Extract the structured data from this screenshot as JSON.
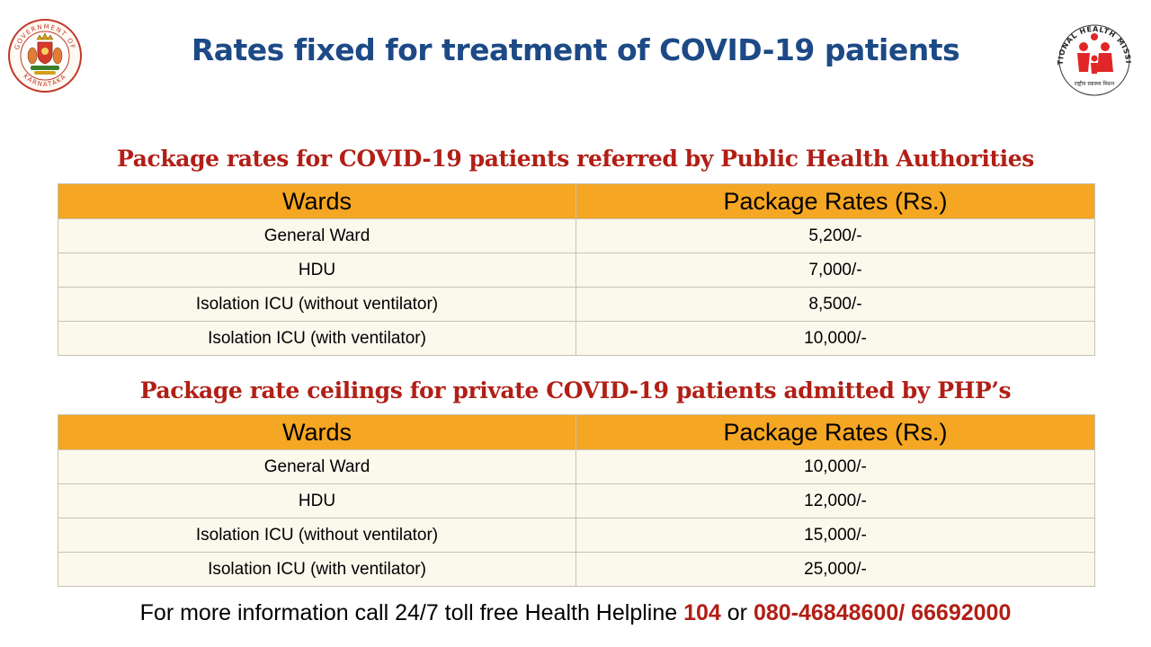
{
  "header": {
    "title": "Rates fixed for treatment of COVID-19 patients",
    "left_logo": {
      "icon": "karnataka-emblem-icon",
      "text_top": "GOVERNMENT OF",
      "text_bottom": "KARNATAKA"
    },
    "right_logo": {
      "icon": "national-health-mission-logo-icon",
      "text_top": "NATIONAL HEALTH MISSION",
      "text_bottom": "राष्ट्रीय स्वास्थ्य मिशन"
    }
  },
  "sections": [
    {
      "title": "Package rates for COVID-19 patients referred by Public Health Authorities",
      "headers": [
        "Wards",
        "Package Rates (Rs.)"
      ],
      "rows": [
        [
          "General Ward",
          "5,200/-"
        ],
        [
          "HDU",
          "7,000/-"
        ],
        [
          "Isolation ICU (without ventilator)",
          "8,500/-"
        ],
        [
          "Isolation ICU (with ventilator)",
          "10,000/-"
        ]
      ]
    },
    {
      "title": "Package rate ceilings for private COVID-19 patients admitted by PHP’s",
      "headers": [
        "Wards",
        "Package Rates (Rs.)"
      ],
      "rows": [
        [
          "General Ward",
          "10,000/-"
        ],
        [
          "HDU",
          "12,000/-"
        ],
        [
          "Isolation ICU (without ventilator)",
          "15,000/-"
        ],
        [
          "Isolation ICU (with ventilator)",
          "25,000/-"
        ]
      ]
    }
  ],
  "footer": {
    "text": "For more information call 24/7 toll free Health Helpline",
    "helpline": "104",
    "connector": "or",
    "phones": "080-46848600/ 66692000"
  },
  "colors": {
    "title_blue": "#1d4a86",
    "section_red": "#b11f16",
    "header_orange": "#f5a623",
    "row_cream": "#fbf8ec"
  }
}
